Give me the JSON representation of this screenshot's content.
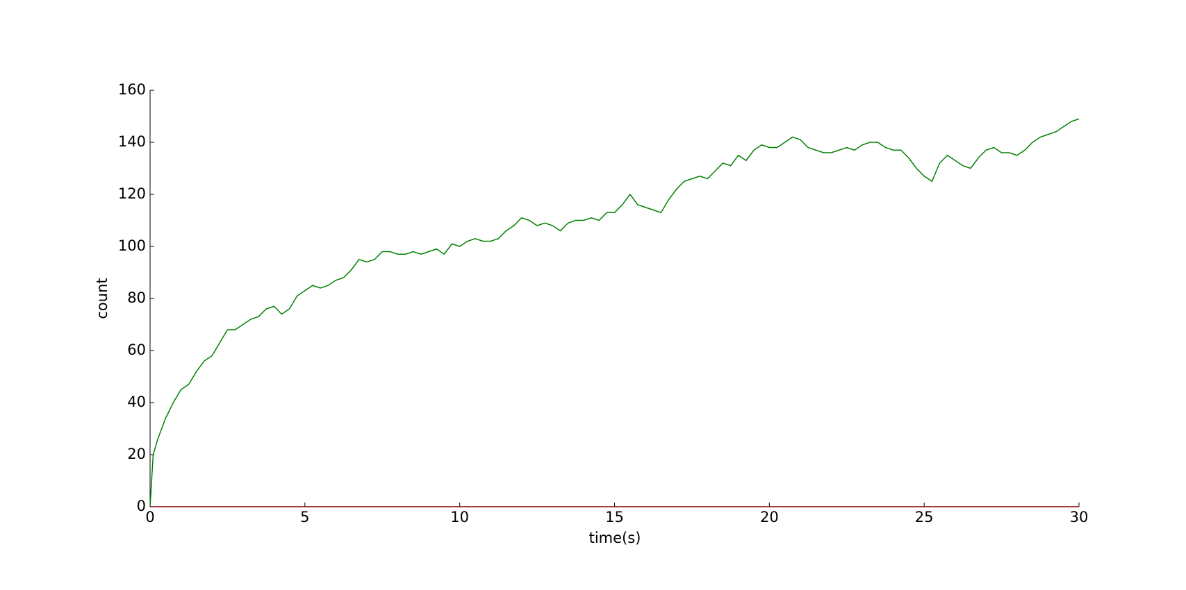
{
  "chart_data": {
    "type": "line",
    "xlabel": "time(s)",
    "ylabel": "count",
    "x": [
      0,
      0.1,
      0.25,
      0.5,
      0.75,
      1,
      1.25,
      1.5,
      1.75,
      2,
      2.25,
      2.5,
      2.75,
      3,
      3.25,
      3.5,
      3.75,
      4,
      4.25,
      4.5,
      4.75,
      5,
      5.25,
      5.5,
      5.75,
      6,
      6.25,
      6.5,
      6.75,
      7,
      7.25,
      7.5,
      7.75,
      8,
      8.25,
      8.5,
      8.75,
      9,
      9.25,
      9.5,
      9.75,
      10,
      10.25,
      10.5,
      10.75,
      11,
      11.25,
      11.5,
      11.75,
      12,
      12.25,
      12.5,
      12.75,
      13,
      13.25,
      13.5,
      13.75,
      14,
      14.25,
      14.5,
      14.75,
      15,
      15.25,
      15.5,
      15.75,
      16,
      16.25,
      16.5,
      16.75,
      17,
      17.25,
      17.5,
      17.75,
      18,
      18.25,
      18.5,
      18.75,
      19,
      19.25,
      19.5,
      19.75,
      20,
      20.25,
      20.5,
      20.75,
      21,
      21.25,
      21.5,
      21.75,
      22,
      22.25,
      22.5,
      22.75,
      23,
      23.25,
      23.5,
      23.75,
      24,
      24.25,
      24.5,
      24.75,
      25,
      25.25,
      25.5,
      25.75,
      26,
      26.25,
      26.5,
      26.75,
      27,
      27.25,
      27.5,
      27.75,
      28,
      28.25,
      28.5,
      28.75,
      29,
      29.25,
      29.5,
      29.75,
      30
    ],
    "series": [
      {
        "color": "#008000",
        "values": [
          0,
          20,
          26,
          34,
          40,
          45,
          47,
          52,
          56,
          58,
          63,
          68,
          68,
          70,
          72,
          73,
          76,
          77,
          74,
          76,
          81,
          83,
          85,
          84,
          85,
          87,
          88,
          91,
          95,
          94,
          95,
          98,
          98,
          97,
          97,
          98,
          97,
          98,
          99,
          97,
          101,
          100,
          102,
          103,
          102,
          102,
          103,
          106,
          108,
          111,
          110,
          108,
          109,
          108,
          106,
          109,
          110,
          110,
          111,
          110,
          113,
          113,
          116,
          120,
          116,
          115,
          114,
          113,
          118,
          122,
          125,
          126,
          127,
          126,
          129,
          132,
          131,
          135,
          133,
          137,
          139,
          138,
          138,
          140,
          142,
          141,
          138,
          137,
          136,
          136,
          137,
          138,
          137,
          139,
          140,
          140,
          138,
          137,
          137,
          134,
          130,
          127,
          125,
          132,
          135,
          133,
          131,
          130,
          134,
          137,
          138,
          136,
          136,
          135,
          137,
          140,
          142,
          143,
          144,
          146,
          148,
          149
        ]
      },
      {
        "color": "#800000",
        "values": [
          0,
          0,
          0,
          0,
          0,
          0,
          0,
          0,
          0,
          0,
          0,
          0,
          0,
          0,
          0,
          0,
          0,
          0,
          0,
          0,
          0,
          0,
          0,
          0,
          0,
          0,
          0,
          0,
          0,
          0,
          0,
          0,
          0,
          0,
          0,
          0,
          0,
          0,
          0,
          0,
          0,
          0,
          0,
          0,
          0,
          0,
          0,
          0,
          0,
          0,
          0,
          0,
          0,
          0,
          0,
          0,
          0,
          0,
          0,
          0,
          0,
          0,
          0,
          0,
          0,
          0,
          0,
          0,
          0,
          0,
          0,
          0,
          0,
          0,
          0,
          0,
          0,
          0,
          0,
          0,
          0,
          0,
          0,
          0,
          0,
          0,
          0,
          0,
          0,
          0,
          0,
          0,
          0,
          0,
          0,
          0,
          0,
          0,
          0,
          0,
          0,
          0,
          0,
          0,
          0,
          0,
          0,
          0,
          0,
          0,
          0,
          0,
          0,
          0,
          0,
          0,
          0,
          0,
          0,
          0,
          0,
          0
        ]
      }
    ],
    "xlim": [
      0,
      30
    ],
    "xticks": [
      0,
      5,
      10,
      15,
      20,
      25,
      30
    ],
    "ylim": [
      0,
      160
    ],
    "yticks": [
      0,
      20,
      40,
      60,
      80,
      100,
      120,
      140,
      160
    ],
    "grid": false
  }
}
